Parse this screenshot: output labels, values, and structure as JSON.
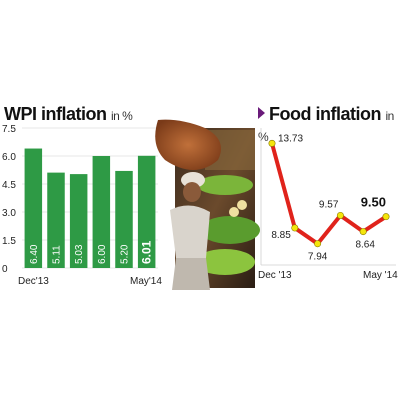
{
  "wpi": {
    "title": "WPI inflation",
    "unit": "in %"
  },
  "food": {
    "title": "Food inflation",
    "unit": "in %"
  },
  "colors": {
    "bar": "#2e9a45",
    "line": "#e0231b",
    "point": "#f4e50c",
    "grid": "#cfcfcf",
    "title_marker": "#6a1b7a"
  },
  "photo": {
    "description_icon": "vendor-photo"
  },
  "chart_data": [
    {
      "type": "bar",
      "title": "WPI inflation",
      "ylabel": "in %",
      "categories": [
        "Dec'13",
        "",
        "",
        "",
        "",
        "May'14"
      ],
      "x_tick_labels": [
        "Dec'13",
        "May'14"
      ],
      "values": [
        6.4,
        5.11,
        5.03,
        6.0,
        5.2,
        6.01
      ],
      "value_labels": [
        "6.40",
        "5.11",
        "5.03",
        "6.00",
        "5.20",
        "6.01"
      ],
      "highlight_index": 5,
      "y_ticks": [
        "0",
        "1.5",
        "3.0",
        "4.5",
        "6.0",
        "7.5"
      ],
      "ylim": [
        0,
        7.5
      ],
      "grid": true
    },
    {
      "type": "line",
      "title": "Food inflation",
      "ylabel": "in %",
      "categories": [
        "Dec '13",
        "",
        "",
        "",
        "",
        "May '14"
      ],
      "x_tick_labels": [
        "Dec '13",
        "May '14"
      ],
      "values": [
        13.73,
        8.85,
        7.94,
        9.57,
        8.64,
        9.5
      ],
      "value_labels": [
        "13.73",
        "8.85",
        "7.94",
        "9.57",
        "8.64",
        "9.50"
      ],
      "highlight_index": 5,
      "ylim": [
        7,
        14.5
      ],
      "grid": true
    }
  ]
}
